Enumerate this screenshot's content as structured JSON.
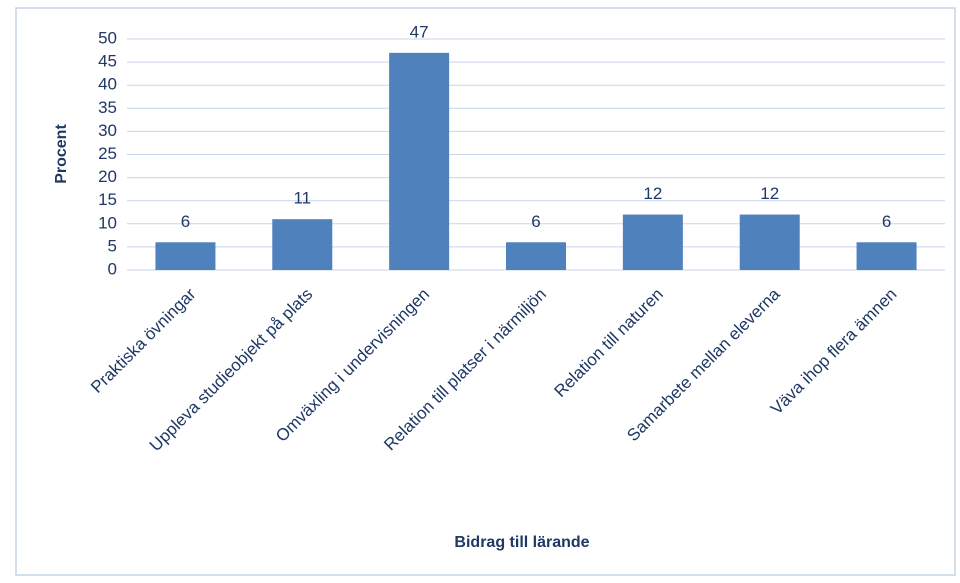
{
  "chart_data": {
    "type": "bar",
    "y_label": "Procent",
    "x_label": "Bidrag till lärande",
    "categories": [
      "Praktiska övningar",
      "Uppleva studieobjekt på plats",
      "Omväxling i undervisningen",
      "Relation till platser i närmiljön",
      "Relation till naturen",
      "Samarbete mellan eleverna",
      "Väva ihop flera ämnen"
    ],
    "values": [
      6,
      11,
      47,
      6,
      12,
      12,
      6
    ],
    "color": "#4f81bd",
    "ylim": [
      0,
      50
    ],
    "yticks": [
      0,
      5,
      10,
      15,
      20,
      25,
      30,
      35,
      40,
      45,
      50
    ],
    "grid": true
  }
}
